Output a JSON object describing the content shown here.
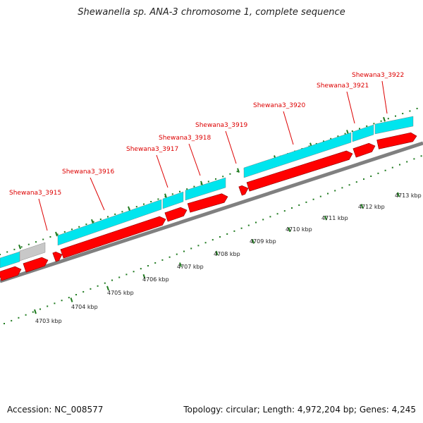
{
  "title": "Shewanella sp. ANA-3 chromosome 1, complete sequence",
  "footer": {
    "accession": "Accession: NC_008577",
    "topology": "Topology: circular; Length: 4,972,204 bp; Genes: 4,245"
  },
  "colors": {
    "gene_forward": "#ff0000",
    "cds_feature": "#00e5ee",
    "other_feature": "#c8c8c8",
    "backbone": "#808080",
    "ticks": "#1e7a1e",
    "gene_label": "#dd0000"
  },
  "gene_labels": [
    "Shewana3_3915",
    "Shewana3_3916",
    "Shewana3_3917",
    "Shewana3_3918",
    "Shewana3_3919",
    "Shewana3_3920",
    "Shewana3_3921",
    "Shewana3_3922"
  ],
  "kbp_labels": [
    "4703 kbp",
    "4704 kbp",
    "4705 kbp",
    "4706 kbp",
    "4707 kbp",
    "4708 kbp",
    "4709 kbp",
    "4710 kbp",
    "4711 kbp",
    "4712 kbp",
    "4713 kbp"
  ]
}
